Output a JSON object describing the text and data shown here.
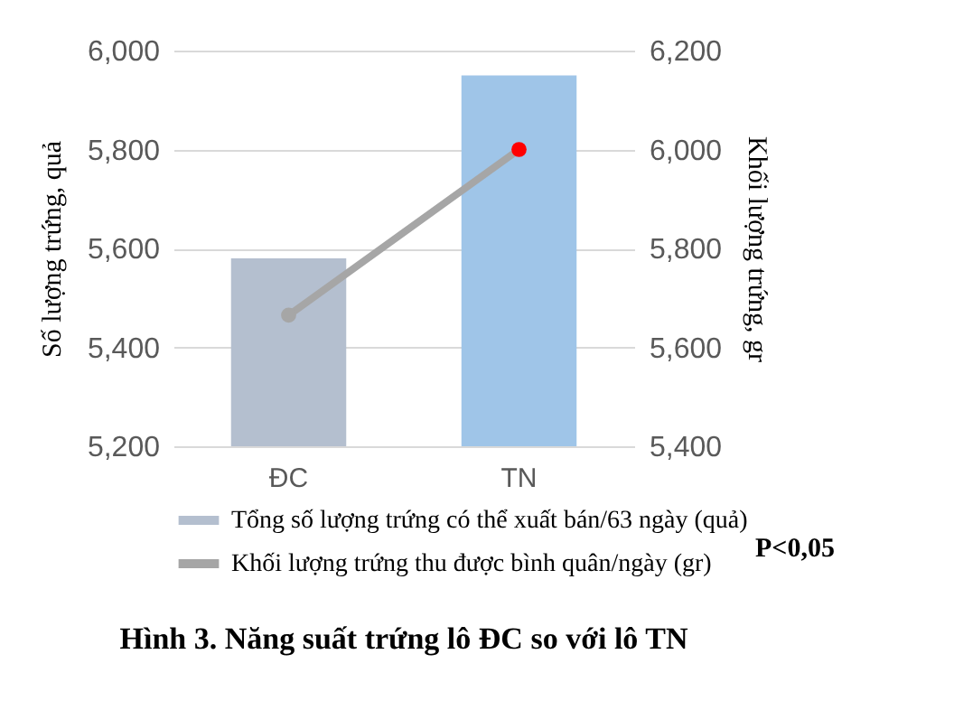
{
  "chart_data": {
    "type": "bar",
    "title": "Hình 3. Năng suất trứng lô ĐC so với lô TN",
    "ylabel": "Số lượng trứng, quả",
    "y2label": "Khối lượng trứng, gr",
    "categories": [
      "ĐC",
      "TN"
    ],
    "series": [
      {
        "name": "Tổng số lượng trứng có thể xuất bán/63 ngày (quả)",
        "colors": [
          "#b4bfcf",
          "#9fc5e8"
        ],
        "values": [
          5580,
          5950
        ]
      },
      {
        "name": "Khối lượng trứng thu được bình quân/ngày (gr)",
        "type": "line",
        "axis": "y2",
        "color": "#a6a6a6",
        "colors": [
          "#a6a6a6",
          "#ff0000"
        ],
        "values": [
          5665,
          6000
        ]
      }
    ],
    "ylim": [
      5200,
      6000
    ],
    "yticks": [
      {
        "value": 5200,
        "label": "5,200"
      },
      {
        "value": 5400,
        "label": "5,400"
      },
      {
        "value": 5600,
        "label": "5,600"
      },
      {
        "value": 5800,
        "label": "5,800"
      },
      {
        "value": 6000,
        "label": "6,000"
      }
    ],
    "y2lim": [
      5400,
      6200
    ],
    "y2ticks": [
      {
        "value": 5400,
        "label": "5,400"
      },
      {
        "value": 5600,
        "label": "5,600"
      },
      {
        "value": 5800,
        "label": "5,800"
      },
      {
        "value": 6000,
        "label": "6,000"
      },
      {
        "value": 6200,
        "label": "6,200"
      }
    ],
    "grid": "y",
    "legend": "bottom",
    "marker": "circle",
    "line_style": "solid",
    "annotations": [
      "P<0,05"
    ]
  }
}
